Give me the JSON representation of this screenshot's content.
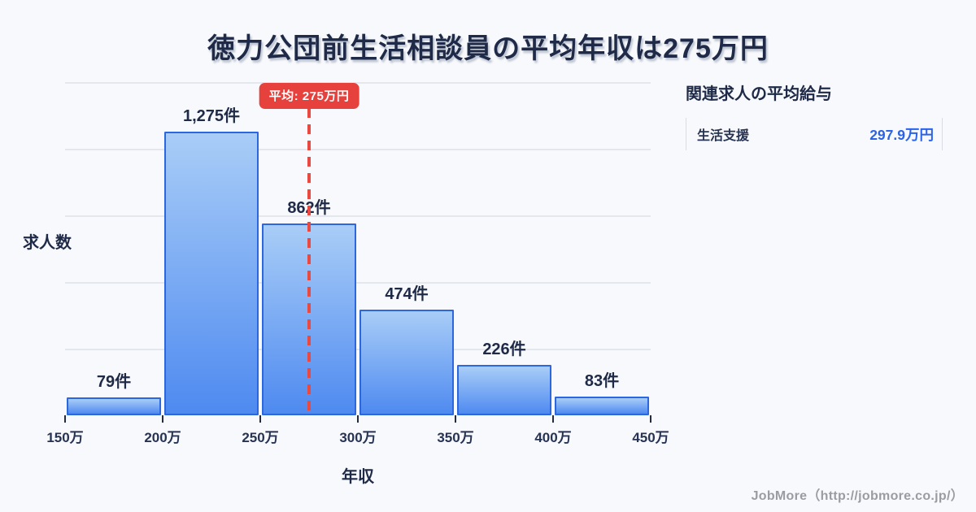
{
  "title": "徳力公団前生活相談員の平均年収は275万円",
  "chart_data": {
    "type": "bar",
    "title": "徳力公団前生活相談員の平均年収は275万円",
    "xlabel": "年収",
    "ylabel": "求人数",
    "ylim": [
      0,
      1500
    ],
    "grid": true,
    "gridline_values": [
      300,
      600,
      900,
      1200,
      1500
    ],
    "bin_edges_values": [
      150,
      200,
      250,
      300,
      350,
      400,
      450
    ],
    "bin_edges_labels": [
      "150万",
      "200万",
      "250万",
      "300万",
      "350万",
      "400万",
      "450万"
    ],
    "values": [
      79,
      1275,
      862,
      474,
      226,
      83
    ],
    "bar_labels": [
      "79件",
      "1,275件",
      "862件",
      "474件",
      "226件",
      "83件"
    ],
    "average": {
      "value": 275,
      "badge_label": "平均: 275万円"
    }
  },
  "side_panel": {
    "heading": "関連求人の平均給与",
    "rows": [
      {
        "label": "生活支援",
        "value": "297.9万円"
      }
    ]
  },
  "footer": {
    "credit": "JobMore（http://jobmore.co.jp/）"
  },
  "colors": {
    "background": "#f8f9fc",
    "title_text": "#1e2a47",
    "bar_border": "#2b68e0",
    "bar_gradient_top": "#a9cdf7",
    "bar_gradient_bottom": "#4e8af0",
    "average_line": "#e84a42",
    "average_badge_bg": "#e6413d",
    "average_badge_text": "#ffffff",
    "gridline": "#e5e7ef",
    "panel_value": "#2b63e8",
    "footer_text": "#9b9ca3"
  }
}
